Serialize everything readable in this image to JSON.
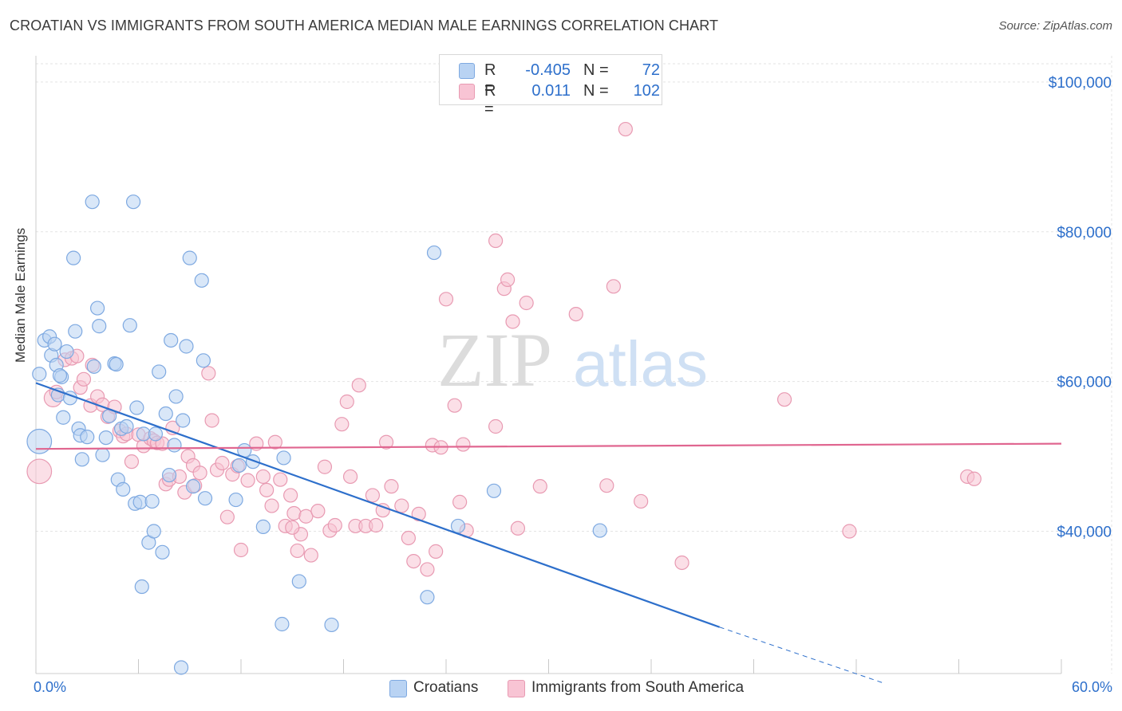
{
  "chart_data": {
    "type": "scatter",
    "title": "CROATIAN VS IMMIGRANTS FROM SOUTH AMERICA MEDIAN MALE EARNINGS CORRELATION CHART",
    "source": "Source: ZipAtlas.com",
    "watermark": {
      "zip": "ZIP",
      "atlas": "atlas"
    },
    "ylabel": "Median Male Earnings",
    "xlim": [
      0,
      60
    ],
    "ylim": [
      21000,
      103500
    ],
    "x_tick_labels": {
      "min": "0.0%",
      "max": "60.0%"
    },
    "y_ticks": [
      {
        "value": 40000,
        "label": "$40,000"
      },
      {
        "value": 60000,
        "label": "$60,000"
      },
      {
        "value": 80000,
        "label": "$80,000"
      },
      {
        "value": 100000,
        "label": "$100,000"
      }
    ],
    "legend": [
      {
        "name": "Croatians",
        "r_label": "R =",
        "r_value": "-0.405",
        "n_label": "N =",
        "n_value": "72"
      },
      {
        "name": "Immigrants from South America",
        "r_label": "R =",
        "r_value": "0.011",
        "n_label": "N =",
        "n_value": "102"
      }
    ],
    "colors": {
      "series1_fill": "#b9d3f3",
      "series1_stroke": "#7ea9e1",
      "series1_line": "#2d6fcb",
      "series2_fill": "#f8c4d4",
      "series2_stroke": "#e89ab2",
      "series2_line": "#e06690",
      "grid": "#e3e3e3",
      "axis_text": "#2d6fcb"
    },
    "series": [
      {
        "name": "Croatians",
        "trend": {
          "x0": 0,
          "y0": 59800,
          "x1": 40,
          "y1": 27200,
          "dash_x1": 49.5,
          "dash_y1": 19800
        },
        "points": [
          [
            0.2,
            52000,
            1.8
          ],
          [
            0.2,
            61000,
            1.0
          ],
          [
            0.5,
            65500,
            1.0
          ],
          [
            0.8,
            66000,
            1.0
          ],
          [
            0.9,
            63500,
            1.0
          ],
          [
            1.1,
            65000,
            1.0
          ],
          [
            1.2,
            62200,
            1.0
          ],
          [
            1.3,
            58200,
            1.0
          ],
          [
            1.5,
            60600,
            1.0
          ],
          [
            1.6,
            55200,
            1.0
          ],
          [
            1.8,
            64000,
            1.0
          ],
          [
            2.0,
            57800,
            1.0
          ],
          [
            2.2,
            76500,
            1.0
          ],
          [
            2.3,
            66700,
            1.0
          ],
          [
            2.5,
            53700,
            1.0
          ],
          [
            2.6,
            52800,
            1.0
          ],
          [
            2.7,
            49600,
            1.0
          ],
          [
            3.0,
            52600,
            1.0
          ],
          [
            3.3,
            84000,
            1.0
          ],
          [
            3.4,
            62000,
            1.0
          ],
          [
            3.6,
            69800,
            1.0
          ],
          [
            3.7,
            67400,
            1.0
          ],
          [
            3.9,
            50200,
            1.0
          ],
          [
            4.1,
            52500,
            1.0
          ],
          [
            4.3,
            55400,
            1.0
          ],
          [
            4.6,
            62400,
            1.0
          ],
          [
            4.7,
            62300,
            1.0
          ],
          [
            4.8,
            46900,
            1.0
          ],
          [
            5.0,
            53700,
            1.0
          ],
          [
            5.1,
            45600,
            1.0
          ],
          [
            5.3,
            54000,
            1.0
          ],
          [
            5.5,
            67500,
            1.0
          ],
          [
            5.7,
            84000,
            1.0
          ],
          [
            5.8,
            43700,
            1.0
          ],
          [
            5.9,
            56500,
            1.0
          ],
          [
            6.1,
            43900,
            1.0
          ],
          [
            6.3,
            53000,
            1.0
          ],
          [
            6.6,
            38500,
            1.0
          ],
          [
            6.8,
            44000,
            1.0
          ],
          [
            6.9,
            40000,
            1.0
          ],
          [
            7.0,
            53000,
            1.0
          ],
          [
            7.2,
            61300,
            1.0
          ],
          [
            7.4,
            37200,
            1.0
          ],
          [
            7.6,
            55700,
            1.0
          ],
          [
            7.8,
            47500,
            1.0
          ],
          [
            7.9,
            65500,
            1.0
          ],
          [
            8.1,
            51500,
            1.0
          ],
          [
            8.2,
            58000,
            1.0
          ],
          [
            8.5,
            21800,
            1.0
          ],
          [
            8.8,
            64700,
            1.0
          ],
          [
            8.6,
            54800,
            1.0
          ],
          [
            9.0,
            76500,
            1.0
          ],
          [
            9.2,
            46000,
            1.0
          ],
          [
            9.7,
            73500,
            1.0
          ],
          [
            9.8,
            62800,
            1.0
          ],
          [
            9.9,
            44400,
            1.0
          ],
          [
            6.2,
            32600,
            1.0
          ],
          [
            11.7,
            44200,
            1.0
          ],
          [
            11.9,
            48800,
            1.0
          ],
          [
            12.2,
            50800,
            1.0
          ],
          [
            12.7,
            49300,
            1.0
          ],
          [
            13.3,
            40600,
            1.0
          ],
          [
            14.4,
            27600,
            1.0
          ],
          [
            14.5,
            49800,
            1.0
          ],
          [
            15.4,
            33300,
            1.0
          ],
          [
            17.3,
            27500,
            1.0
          ],
          [
            22.9,
            31200,
            1.0
          ],
          [
            23.3,
            77200,
            1.0
          ],
          [
            24.7,
            40700,
            1.0
          ],
          [
            26.8,
            45400,
            1.0
          ],
          [
            33.0,
            40100,
            1.0
          ],
          [
            1.4,
            60800,
            1.0
          ]
        ]
      },
      {
        "name": "Immigrants from South America",
        "trend": {
          "x0": 0,
          "y0": 51000,
          "x1": 60,
          "y1": 51700
        },
        "points": [
          [
            0.2,
            48000,
            1.8
          ],
          [
            1.0,
            57800,
            1.3
          ],
          [
            1.2,
            58600,
            1.0
          ],
          [
            1.7,
            62900,
            1.0
          ],
          [
            2.1,
            63100,
            1.0
          ],
          [
            2.4,
            63400,
            1.0
          ],
          [
            2.6,
            59200,
            1.0
          ],
          [
            2.8,
            60300,
            1.0
          ],
          [
            3.2,
            56800,
            1.0
          ],
          [
            3.3,
            62200,
            1.0
          ],
          [
            3.6,
            58000,
            1.0
          ],
          [
            3.9,
            56900,
            1.0
          ],
          [
            4.2,
            55300,
            1.0
          ],
          [
            4.6,
            56600,
            1.0
          ],
          [
            4.9,
            53400,
            1.0
          ],
          [
            5.1,
            52700,
            1.0
          ],
          [
            5.3,
            53000,
            1.0
          ],
          [
            5.6,
            49300,
            1.0
          ],
          [
            6.0,
            52900,
            1.0
          ],
          [
            6.3,
            51400,
            1.0
          ],
          [
            6.7,
            52400,
            1.0
          ],
          [
            6.9,
            52100,
            1.0
          ],
          [
            7.1,
            51800,
            1.0
          ],
          [
            7.4,
            51700,
            1.0
          ],
          [
            7.6,
            46300,
            1.0
          ],
          [
            7.8,
            46900,
            1.0
          ],
          [
            8.0,
            53800,
            1.0
          ],
          [
            8.4,
            47300,
            1.0
          ],
          [
            8.7,
            45200,
            1.0
          ],
          [
            8.9,
            50000,
            1.0
          ],
          [
            9.2,
            48800,
            1.0
          ],
          [
            9.3,
            46100,
            1.0
          ],
          [
            9.6,
            47800,
            1.0
          ],
          [
            10.1,
            61100,
            1.0
          ],
          [
            10.3,
            54800,
            1.0
          ],
          [
            10.6,
            48200,
            1.0
          ],
          [
            10.9,
            49100,
            1.0
          ],
          [
            11.2,
            41900,
            1.0
          ],
          [
            11.5,
            47600,
            1.0
          ],
          [
            11.8,
            48700,
            1.0
          ],
          [
            12.0,
            37500,
            1.0
          ],
          [
            12.4,
            46800,
            1.0
          ],
          [
            12.9,
            51700,
            1.0
          ],
          [
            13.3,
            47300,
            1.0
          ],
          [
            13.5,
            45500,
            1.0
          ],
          [
            13.8,
            43400,
            1.0
          ],
          [
            14.0,
            51900,
            1.0
          ],
          [
            14.3,
            46900,
            1.0
          ],
          [
            14.6,
            40700,
            1.0
          ],
          [
            14.9,
            44800,
            1.0
          ],
          [
            15.1,
            42400,
            1.0
          ],
          [
            15.3,
            37400,
            1.0
          ],
          [
            15.5,
            39600,
            1.0
          ],
          [
            15.8,
            42000,
            1.0
          ],
          [
            16.1,
            36800,
            1.0
          ],
          [
            16.5,
            42700,
            1.0
          ],
          [
            16.9,
            48600,
            1.0
          ],
          [
            17.2,
            40100,
            1.0
          ],
          [
            17.5,
            40800,
            1.0
          ],
          [
            17.9,
            54300,
            1.0
          ],
          [
            18.2,
            57300,
            1.0
          ],
          [
            18.4,
            47300,
            1.0
          ],
          [
            18.7,
            40700,
            1.0
          ],
          [
            18.9,
            59500,
            1.0
          ],
          [
            19.3,
            40700,
            1.0
          ],
          [
            19.7,
            44800,
            1.0
          ],
          [
            19.9,
            40800,
            1.0
          ],
          [
            20.3,
            42800,
            1.0
          ],
          [
            20.5,
            51900,
            1.0
          ],
          [
            20.8,
            46000,
            1.0
          ],
          [
            21.4,
            43400,
            1.0
          ],
          [
            21.8,
            39100,
            1.0
          ],
          [
            22.1,
            36000,
            1.0
          ],
          [
            22.4,
            42300,
            1.0
          ],
          [
            22.9,
            34900,
            1.0
          ],
          [
            23.2,
            51500,
            1.0
          ],
          [
            23.4,
            37300,
            1.0
          ],
          [
            23.7,
            51200,
            1.0
          ],
          [
            24.0,
            71000,
            1.0
          ],
          [
            24.5,
            56800,
            1.0
          ],
          [
            24.8,
            43900,
            1.0
          ],
          [
            25.0,
            51600,
            1.0
          ],
          [
            25.2,
            40100,
            1.0
          ],
          [
            26.9,
            78800,
            1.0
          ],
          [
            26.9,
            54000,
            1.0
          ],
          [
            27.4,
            72400,
            1.0
          ],
          [
            27.6,
            73600,
            1.0
          ],
          [
            27.9,
            68000,
            1.0
          ],
          [
            28.2,
            40400,
            1.0
          ],
          [
            28.7,
            70500,
            1.0
          ],
          [
            29.5,
            46000,
            1.0
          ],
          [
            31.6,
            69000,
            1.0
          ],
          [
            33.4,
            46100,
            1.0
          ],
          [
            33.8,
            72700,
            1.0
          ],
          [
            34.5,
            93700,
            1.0
          ],
          [
            35.4,
            44000,
            1.0
          ],
          [
            37.8,
            35800,
            1.0
          ],
          [
            43.8,
            57600,
            1.0
          ],
          [
            47.6,
            40000,
            1.0
          ],
          [
            54.5,
            47300,
            1.0
          ],
          [
            54.9,
            47000,
            1.0
          ],
          [
            15.0,
            40500,
            1.0
          ]
        ]
      }
    ]
  }
}
